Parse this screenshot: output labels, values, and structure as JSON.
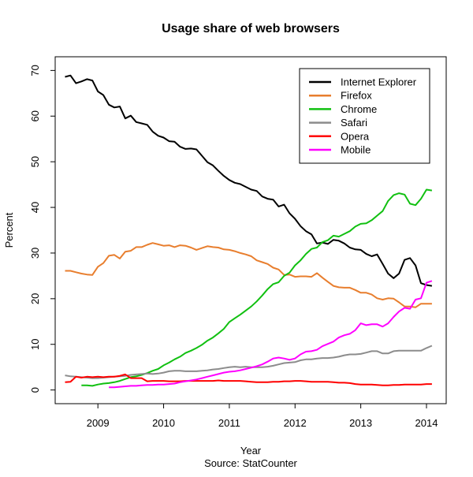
{
  "chart_data": {
    "type": "line",
    "title": "Usage share of web browsers",
    "xlabel": "Year",
    "ylabel": "Percent",
    "caption": "Source: StatCounter",
    "xlim": [
      2008.35,
      2014.3
    ],
    "ylim": [
      -3,
      73
    ],
    "x_ticks": [
      2009,
      2010,
      2011,
      2012,
      2013,
      2014
    ],
    "x_tick_labels": [
      "2009",
      "2010",
      "2011",
      "2012",
      "2013",
      "2014"
    ],
    "y_ticks": [
      0,
      10,
      20,
      30,
      40,
      50,
      60,
      70
    ],
    "y_tick_labels": [
      "0",
      "10",
      "20",
      "30",
      "40",
      "50",
      "60",
      "70"
    ],
    "grid": false,
    "legend_position": "top-right",
    "x_step": 0.08333,
    "x_end": 2014.083,
    "series": [
      {
        "name": "Internet Explorer",
        "color": "#000000",
        "values": [
          68.6,
          68.9,
          67.2,
          67.6,
          68.1,
          67.8,
          65.4,
          64.6,
          62.5,
          61.9,
          62.1,
          59.5,
          60.1,
          58.7,
          58.4,
          58.1,
          56.6,
          55.7,
          55.3,
          54.5,
          54.4,
          53.3,
          52.8,
          52.9,
          52.7,
          51.3,
          49.9,
          49.2,
          48.0,
          46.9,
          46.0,
          45.4,
          45.1,
          44.5,
          43.9,
          43.6,
          42.4,
          41.9,
          41.7,
          40.2,
          40.6,
          38.7,
          37.5,
          35.9,
          34.8,
          34.1,
          32.1,
          32.3,
          32.0,
          32.9,
          32.7,
          32.1,
          31.2,
          30.8,
          30.7,
          29.8,
          29.3,
          29.7,
          27.6,
          25.5,
          24.5,
          25.5,
          28.5,
          28.9,
          27.3,
          23.4,
          23.0,
          22.8
        ]
      },
      {
        "name": "Firefox",
        "color": "#e87e2e",
        "values": [
          26.1,
          26.1,
          25.8,
          25.5,
          25.3,
          25.2,
          27.0,
          27.8,
          29.4,
          29.6,
          28.8,
          30.3,
          30.5,
          31.3,
          31.3,
          31.8,
          32.2,
          31.9,
          31.6,
          31.7,
          31.3,
          31.7,
          31.6,
          31.2,
          30.7,
          31.1,
          31.5,
          31.3,
          31.2,
          30.8,
          30.7,
          30.4,
          30.0,
          29.7,
          29.3,
          28.4,
          28.0,
          27.6,
          26.8,
          26.4,
          25.2,
          25.3,
          24.8,
          24.9,
          24.9,
          24.8,
          25.6,
          24.6,
          23.7,
          22.8,
          22.5,
          22.4,
          22.4,
          21.9,
          21.3,
          21.3,
          20.9,
          20.1,
          19.8,
          20.1,
          20.0,
          19.2,
          18.3,
          18.3,
          18.1,
          18.9,
          18.9,
          18.9
        ]
      },
      {
        "name": "Chrome",
        "color": "#11c011",
        "values": [
          1.0,
          1.0,
          0.9,
          1.2,
          1.4,
          1.5,
          1.7,
          2.0,
          2.4,
          2.8,
          3.0,
          3.3,
          3.7,
          4.2,
          4.6,
          5.4,
          6.0,
          6.7,
          7.3,
          8.1,
          8.6,
          9.2,
          9.9,
          10.8,
          11.5,
          12.4,
          13.4,
          14.9,
          15.7,
          16.5,
          17.4,
          18.3,
          19.4,
          20.7,
          22.1,
          23.2,
          23.6,
          25.0,
          25.7,
          27.3,
          28.4,
          29.8,
          30.9,
          31.2,
          32.4,
          32.8,
          33.8,
          33.6,
          34.2,
          34.8,
          35.8,
          36.4,
          36.5,
          37.2,
          38.2,
          39.2,
          41.4,
          42.7,
          43.1,
          42.8,
          40.8,
          40.5,
          41.9,
          43.9,
          43.7
        ]
      },
      {
        "name": "Safari",
        "color": "#8c8c8c",
        "values": [
          3.2,
          3.0,
          2.9,
          2.8,
          2.7,
          2.6,
          2.6,
          2.7,
          2.8,
          2.9,
          3.0,
          3.1,
          3.3,
          3.4,
          3.5,
          3.6,
          3.5,
          3.6,
          3.8,
          4.1,
          4.2,
          4.2,
          4.1,
          4.1,
          4.1,
          4.2,
          4.3,
          4.5,
          4.6,
          4.8,
          5.0,
          5.1,
          5.0,
          5.1,
          5.0,
          5.0,
          5.0,
          5.1,
          5.3,
          5.6,
          5.9,
          6.0,
          6.1,
          6.5,
          6.7,
          6.7,
          6.9,
          7.0,
          7.0,
          7.1,
          7.3,
          7.6,
          7.8,
          7.8,
          7.9,
          8.2,
          8.5,
          8.5,
          8.0,
          8.0,
          8.5,
          8.6,
          8.6,
          8.6,
          8.6,
          8.6,
          9.2,
          9.7
        ]
      },
      {
        "name": "Opera",
        "color": "#ff0000",
        "values": [
          1.7,
          1.8,
          2.9,
          2.7,
          2.9,
          2.8,
          2.9,
          2.8,
          2.9,
          2.9,
          3.1,
          3.4,
          2.6,
          2.6,
          2.6,
          1.9,
          2.0,
          2.0,
          2.0,
          1.9,
          1.9,
          1.9,
          2.0,
          2.0,
          2.0,
          2.0,
          2.0,
          2.0,
          2.1,
          2.0,
          2.0,
          2.0,
          2.0,
          1.9,
          1.8,
          1.7,
          1.7,
          1.7,
          1.8,
          1.8,
          1.9,
          1.9,
          2.0,
          2.0,
          1.9,
          1.8,
          1.8,
          1.8,
          1.8,
          1.7,
          1.6,
          1.6,
          1.5,
          1.3,
          1.2,
          1.2,
          1.2,
          1.1,
          1.0,
          1.0,
          1.1,
          1.1,
          1.2,
          1.2,
          1.2,
          1.2,
          1.3,
          1.3
        ]
      },
      {
        "name": "Mobile",
        "color": "#ff00ff",
        "values": [
          0.6,
          0.6,
          0.7,
          0.8,
          0.9,
          0.9,
          1.0,
          1.1,
          1.1,
          1.2,
          1.2,
          1.3,
          1.4,
          1.7,
          1.9,
          2.1,
          2.3,
          2.6,
          2.9,
          3.2,
          3.5,
          3.8,
          4.0,
          4.1,
          4.3,
          4.6,
          4.9,
          5.2,
          5.6,
          6.2,
          6.9,
          7.1,
          6.9,
          6.6,
          6.9,
          7.8,
          8.4,
          8.5,
          8.8,
          9.6,
          10.1,
          10.6,
          11.5,
          12.0,
          12.3,
          13.1,
          14.6,
          14.2,
          14.4,
          14.4,
          13.9,
          14.6,
          16.0,
          17.2,
          18.0,
          17.8,
          19.8,
          20.1,
          23.5,
          23.9
        ]
      }
    ]
  }
}
